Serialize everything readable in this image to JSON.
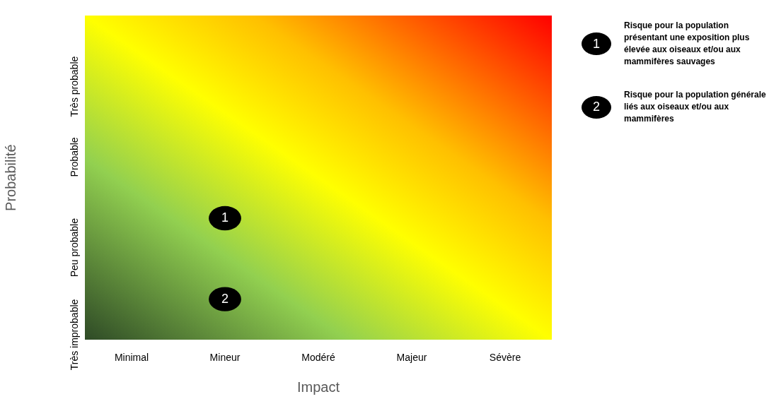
{
  "chart_data": {
    "type": "heatmap",
    "xlabel": "Impact",
    "ylabel": "Probabilité",
    "categories": [
      "Minimal",
      "Mineur",
      "Modéré",
      "Majeur",
      "Sévère"
    ],
    "y_categories": [
      "Très probable",
      "Probable",
      "Peu probable",
      "Très improbable"
    ],
    "cells": [
      [
        null,
        null,
        null,
        null,
        null
      ],
      [
        null,
        null,
        null,
        null,
        null
      ],
      [
        null,
        1,
        null,
        null,
        null
      ],
      [
        null,
        2,
        null,
        null,
        null
      ]
    ],
    "color": "#000000",
    "data_labels": true,
    "annotations": [
      "1",
      "Risque pour la population présentant une exposition plus élevée aux oiseaux et/ou aux mammifères sauvages",
      "2",
      "Risque pour la population générale liés aux oiseaux et/ou aux mammifères"
    ]
  }
}
